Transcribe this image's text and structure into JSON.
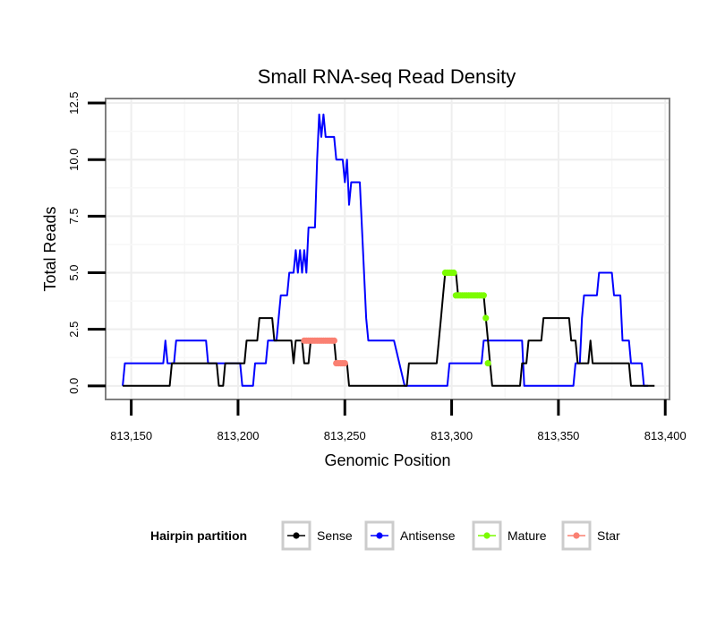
{
  "chart_data": {
    "type": "line",
    "title": "Small RNA-seq Read Density",
    "xlabel": "Genomic Position",
    "ylabel": "Total Reads",
    "xlim": [
      813138,
      813402
    ],
    "ylim": [
      -0.6,
      12.7
    ],
    "x_ticks": [
      813150,
      813200,
      813250,
      813300,
      813350,
      813400
    ],
    "x_tick_labels": [
      "813,150",
      "813,200",
      "813,250",
      "813,300",
      "813,350",
      "813,400"
    ],
    "y_ticks": [
      0,
      2.5,
      5,
      7.5,
      10,
      12.5
    ],
    "y_tick_labels": [
      "0.0",
      "2.5",
      "5.0",
      "7.5",
      "10.0",
      "12.5"
    ],
    "grid": true,
    "legend": {
      "title": "Hairpin partition",
      "position": "bottom",
      "entries": [
        "Sense",
        "Antisense",
        "Mature",
        "Star"
      ]
    },
    "series": [
      {
        "name": "Sense",
        "color": "#000000",
        "style": "line",
        "points": [
          [
            813146,
            0
          ],
          [
            813168,
            0
          ],
          [
            813169,
            1
          ],
          [
            813190,
            1
          ],
          [
            813191,
            0
          ],
          [
            813193,
            0
          ],
          [
            813194,
            1
          ],
          [
            813203,
            1
          ],
          [
            813204,
            2
          ],
          [
            813209,
            2
          ],
          [
            813210,
            3
          ],
          [
            813216,
            3
          ],
          [
            813217,
            2
          ],
          [
            813225,
            2
          ],
          [
            813226,
            1
          ],
          [
            813227,
            2
          ],
          [
            813230,
            2
          ],
          [
            813231,
            1
          ],
          [
            813233,
            1
          ],
          [
            813234,
            2
          ],
          [
            813245,
            2
          ],
          [
            813246,
            1
          ],
          [
            813251,
            1
          ],
          [
            813252,
            0
          ],
          [
            813279,
            0
          ],
          [
            813280,
            1
          ],
          [
            813293,
            1
          ],
          [
            813294,
            2
          ],
          [
            813295,
            3
          ],
          [
            813296,
            4
          ],
          [
            813297,
            5
          ],
          [
            813302,
            5
          ],
          [
            813303,
            4
          ],
          [
            813315,
            4
          ],
          [
            813316,
            3
          ],
          [
            813317,
            2
          ],
          [
            813318,
            1
          ],
          [
            813319,
            0
          ],
          [
            813332,
            0
          ],
          [
            813333,
            1
          ],
          [
            813335,
            1
          ],
          [
            813336,
            2
          ],
          [
            813342,
            2
          ],
          [
            813343,
            3
          ],
          [
            813355,
            3
          ],
          [
            813356,
            2
          ],
          [
            813358,
            2
          ],
          [
            813359,
            1
          ],
          [
            813364,
            1
          ],
          [
            813365,
            2
          ],
          [
            813366,
            1
          ],
          [
            813383,
            1
          ],
          [
            813384,
            0
          ],
          [
            813395,
            0
          ]
        ]
      },
      {
        "name": "Antisense",
        "color": "#0000ff",
        "style": "line",
        "points": [
          [
            813146,
            0
          ],
          [
            813147,
            1
          ],
          [
            813165,
            1
          ],
          [
            813166,
            2
          ],
          [
            813167,
            1
          ],
          [
            813170,
            1
          ],
          [
            813171,
            2
          ],
          [
            813185,
            2
          ],
          [
            813186,
            1
          ],
          [
            813201,
            1
          ],
          [
            813202,
            0
          ],
          [
            813207,
            0
          ],
          [
            813208,
            1
          ],
          [
            813213,
            1
          ],
          [
            813214,
            2
          ],
          [
            813218,
            2
          ],
          [
            813219,
            3
          ],
          [
            813220,
            4
          ],
          [
            813223,
            4
          ],
          [
            813224,
            5
          ],
          [
            813226,
            5
          ],
          [
            813227,
            6
          ],
          [
            813228,
            5
          ],
          [
            813229,
            6
          ],
          [
            813230,
            5
          ],
          [
            813231,
            6
          ],
          [
            813232,
            5
          ],
          [
            813233,
            7
          ],
          [
            813236,
            7
          ],
          [
            813237,
            10
          ],
          [
            813238,
            12
          ],
          [
            813239,
            11
          ],
          [
            813240,
            12
          ],
          [
            813241,
            11
          ],
          [
            813245,
            11
          ],
          [
            813246,
            10
          ],
          [
            813249,
            10
          ],
          [
            813250,
            9
          ],
          [
            813251,
            10
          ],
          [
            813252,
            8
          ],
          [
            813253,
            9
          ],
          [
            813257,
            9
          ],
          [
            813260,
            3
          ],
          [
            813261,
            2
          ],
          [
            813273,
            2
          ],
          [
            813278,
            0
          ],
          [
            813298,
            0
          ],
          [
            813299,
            1
          ],
          [
            813314,
            1
          ],
          [
            813315,
            2
          ],
          [
            813333,
            2
          ],
          [
            813334,
            0
          ],
          [
            813357,
            0
          ],
          [
            813358,
            1
          ],
          [
            813360,
            1
          ],
          [
            813361,
            3
          ],
          [
            813362,
            4
          ],
          [
            813368,
            4
          ],
          [
            813369,
            5
          ],
          [
            813375,
            5
          ],
          [
            813376,
            4
          ],
          [
            813379,
            4
          ],
          [
            813380,
            2
          ],
          [
            813383,
            2
          ],
          [
            813384,
            1
          ],
          [
            813389,
            1
          ],
          [
            813390,
            0
          ],
          [
            813392,
            0
          ]
        ]
      },
      {
        "name": "Mature",
        "color": "#7cfc00",
        "style": "points",
        "points": [
          [
            813297,
            5
          ],
          [
            813298,
            5
          ],
          [
            813299,
            5
          ],
          [
            813300,
            5
          ],
          [
            813301,
            5
          ],
          [
            813302,
            4
          ],
          [
            813303,
            4
          ],
          [
            813304,
            4
          ],
          [
            813305,
            4
          ],
          [
            813306,
            4
          ],
          [
            813307,
            4
          ],
          [
            813308,
            4
          ],
          [
            813309,
            4
          ],
          [
            813310,
            4
          ],
          [
            813311,
            4
          ],
          [
            813312,
            4
          ],
          [
            813313,
            4
          ],
          [
            813314,
            4
          ],
          [
            813315,
            4
          ],
          [
            813316,
            3
          ],
          [
            813317,
            1
          ]
        ]
      },
      {
        "name": "Star",
        "color": "#fa8072",
        "style": "points",
        "points": [
          [
            813231,
            2
          ],
          [
            813232,
            2
          ],
          [
            813233,
            2
          ],
          [
            813234,
            2
          ],
          [
            813235,
            2
          ],
          [
            813236,
            2
          ],
          [
            813237,
            2
          ],
          [
            813238,
            2
          ],
          [
            813239,
            2
          ],
          [
            813240,
            2
          ],
          [
            813241,
            2
          ],
          [
            813242,
            2
          ],
          [
            813243,
            2
          ],
          [
            813244,
            2
          ],
          [
            813245,
            2
          ],
          [
            813246,
            1
          ],
          [
            813247,
            1
          ],
          [
            813248,
            1
          ],
          [
            813249,
            1
          ],
          [
            813250,
            1
          ]
        ]
      }
    ]
  }
}
